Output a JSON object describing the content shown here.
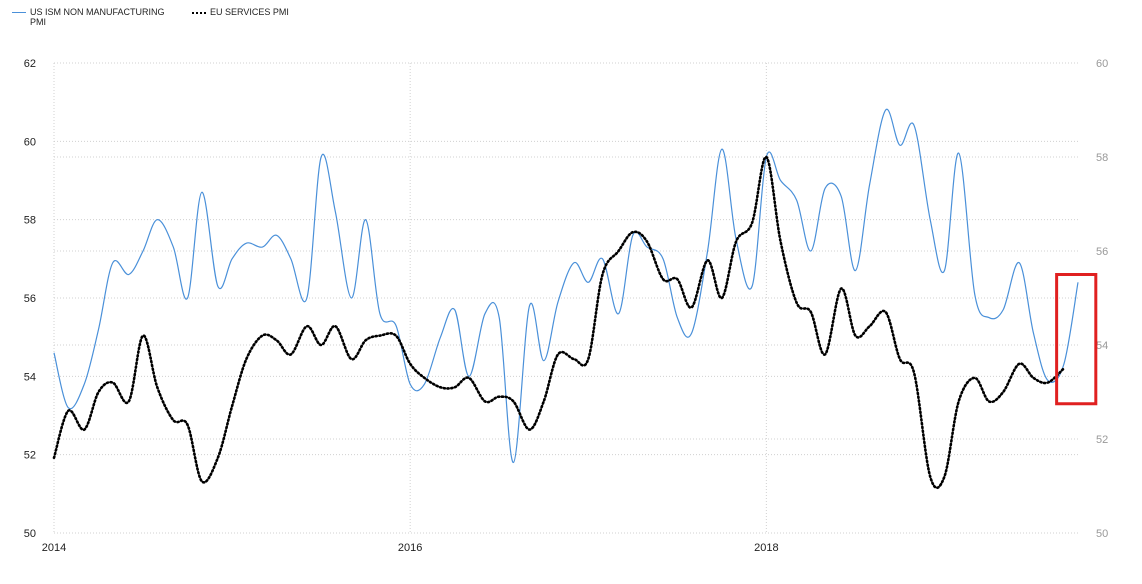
{
  "chart_data": {
    "type": "line",
    "title": "",
    "xlabel": "",
    "ylabel": "",
    "x_ticks": [
      "2014",
      "2016",
      "2018"
    ],
    "x_range": [
      2014.0,
      2019.75
    ],
    "y_left": {
      "range": [
        50,
        62
      ],
      "ticks": [
        50,
        52,
        54,
        56,
        58,
        60,
        62
      ]
    },
    "y_right": {
      "range": [
        50,
        60
      ],
      "ticks": [
        50,
        52,
        54,
        56,
        58,
        60
      ]
    },
    "grid": true,
    "legend_placement": "top-left",
    "series": [
      {
        "name": "US ISM NON MANUFACTURING PMI",
        "axis": "left",
        "color": "#4a90d9",
        "style": "solid",
        "points": [
          [
            2014.0,
            54.6
          ],
          [
            2014.08,
            53.2
          ],
          [
            2014.17,
            53.8
          ],
          [
            2014.25,
            55.2
          ],
          [
            2014.33,
            56.9
          ],
          [
            2014.42,
            56.6
          ],
          [
            2014.5,
            57.2
          ],
          [
            2014.58,
            58.0
          ],
          [
            2014.67,
            57.3
          ],
          [
            2014.75,
            56.0
          ],
          [
            2014.83,
            58.7
          ],
          [
            2014.92,
            56.3
          ],
          [
            2015.0,
            57.0
          ],
          [
            2015.08,
            57.4
          ],
          [
            2015.17,
            57.3
          ],
          [
            2015.25,
            57.6
          ],
          [
            2015.33,
            57.0
          ],
          [
            2015.42,
            56.0
          ],
          [
            2015.5,
            59.6
          ],
          [
            2015.58,
            58.2
          ],
          [
            2015.67,
            56.0
          ],
          [
            2015.75,
            58.0
          ],
          [
            2015.83,
            55.6
          ],
          [
            2015.92,
            55.3
          ],
          [
            2016.0,
            53.8
          ],
          [
            2016.08,
            53.8
          ],
          [
            2016.17,
            55.0
          ],
          [
            2016.25,
            55.7
          ],
          [
            2016.33,
            54.0
          ],
          [
            2016.42,
            55.6
          ],
          [
            2016.5,
            55.5
          ],
          [
            2016.58,
            51.8
          ],
          [
            2016.67,
            55.8
          ],
          [
            2016.75,
            54.4
          ],
          [
            2016.83,
            55.9
          ],
          [
            2016.92,
            56.9
          ],
          [
            2017.0,
            56.4
          ],
          [
            2017.08,
            57.0
          ],
          [
            2017.17,
            55.6
          ],
          [
            2017.25,
            57.6
          ],
          [
            2017.33,
            57.3
          ],
          [
            2017.42,
            57.0
          ],
          [
            2017.5,
            55.5
          ],
          [
            2017.58,
            55.1
          ],
          [
            2017.67,
            57.2
          ],
          [
            2017.75,
            59.8
          ],
          [
            2017.83,
            57.5
          ],
          [
            2017.92,
            56.3
          ],
          [
            2018.0,
            59.6
          ],
          [
            2018.08,
            59.0
          ],
          [
            2018.17,
            58.5
          ],
          [
            2018.25,
            57.2
          ],
          [
            2018.33,
            58.8
          ],
          [
            2018.42,
            58.6
          ],
          [
            2018.5,
            56.7
          ],
          [
            2018.58,
            58.9
          ],
          [
            2018.67,
            60.8
          ],
          [
            2018.75,
            59.9
          ],
          [
            2018.83,
            60.4
          ],
          [
            2018.92,
            58.0
          ],
          [
            2019.0,
            56.7
          ],
          [
            2019.08,
            59.7
          ],
          [
            2019.17,
            56.1
          ],
          [
            2019.25,
            55.5
          ],
          [
            2019.33,
            55.7
          ],
          [
            2019.42,
            56.9
          ],
          [
            2019.5,
            55.1
          ],
          [
            2019.58,
            53.9
          ],
          [
            2019.67,
            54.3
          ],
          [
            2019.75,
            56.4
          ]
        ]
      },
      {
        "name": "EU SERVICES PMI",
        "axis": "right",
        "color": "#000000",
        "style": "dotted",
        "points": [
          [
            2014.0,
            51.6
          ],
          [
            2014.08,
            52.6
          ],
          [
            2014.17,
            52.2
          ],
          [
            2014.25,
            53.0
          ],
          [
            2014.33,
            53.2
          ],
          [
            2014.42,
            52.8
          ],
          [
            2014.5,
            54.2
          ],
          [
            2014.58,
            53.1
          ],
          [
            2014.67,
            52.4
          ],
          [
            2014.75,
            52.3
          ],
          [
            2014.83,
            51.1
          ],
          [
            2014.92,
            51.6
          ],
          [
            2015.0,
            52.7
          ],
          [
            2015.08,
            53.7
          ],
          [
            2015.17,
            54.2
          ],
          [
            2015.25,
            54.1
          ],
          [
            2015.33,
            53.8
          ],
          [
            2015.42,
            54.4
          ],
          [
            2015.5,
            54.0
          ],
          [
            2015.58,
            54.4
          ],
          [
            2015.67,
            53.7
          ],
          [
            2015.75,
            54.1
          ],
          [
            2015.83,
            54.2
          ],
          [
            2015.92,
            54.2
          ],
          [
            2016.0,
            53.6
          ],
          [
            2016.08,
            53.3
          ],
          [
            2016.17,
            53.1
          ],
          [
            2016.25,
            53.1
          ],
          [
            2016.33,
            53.3
          ],
          [
            2016.42,
            52.8
          ],
          [
            2016.5,
            52.9
          ],
          [
            2016.58,
            52.8
          ],
          [
            2016.67,
            52.2
          ],
          [
            2016.75,
            52.8
          ],
          [
            2016.83,
            53.8
          ],
          [
            2016.92,
            53.7
          ],
          [
            2017.0,
            53.7
          ],
          [
            2017.08,
            55.5
          ],
          [
            2017.17,
            56.0
          ],
          [
            2017.25,
            56.4
          ],
          [
            2017.33,
            56.2
          ],
          [
            2017.42,
            55.4
          ],
          [
            2017.5,
            55.4
          ],
          [
            2017.58,
            54.8
          ],
          [
            2017.67,
            55.8
          ],
          [
            2017.75,
            55.0
          ],
          [
            2017.83,
            56.2
          ],
          [
            2017.92,
            56.6
          ],
          [
            2018.0,
            58.0
          ],
          [
            2018.08,
            56.2
          ],
          [
            2018.17,
            54.9
          ],
          [
            2018.25,
            54.7
          ],
          [
            2018.33,
            53.8
          ],
          [
            2018.42,
            55.2
          ],
          [
            2018.5,
            54.2
          ],
          [
            2018.58,
            54.4
          ],
          [
            2018.67,
            54.7
          ],
          [
            2018.75,
            53.7
          ],
          [
            2018.83,
            53.4
          ],
          [
            2018.92,
            51.2
          ],
          [
            2019.0,
            51.2
          ],
          [
            2019.08,
            52.8
          ],
          [
            2019.17,
            53.3
          ],
          [
            2019.25,
            52.8
          ],
          [
            2019.33,
            53.0
          ],
          [
            2019.42,
            53.6
          ],
          [
            2019.5,
            53.3
          ],
          [
            2019.58,
            53.2
          ],
          [
            2019.67,
            53.5
          ]
        ]
      }
    ],
    "annotation": {
      "type": "highlight-box",
      "color": "#e02020",
      "x_range": [
        2019.63,
        2019.85
      ],
      "y_range_left": [
        53.3,
        56.6
      ]
    }
  }
}
